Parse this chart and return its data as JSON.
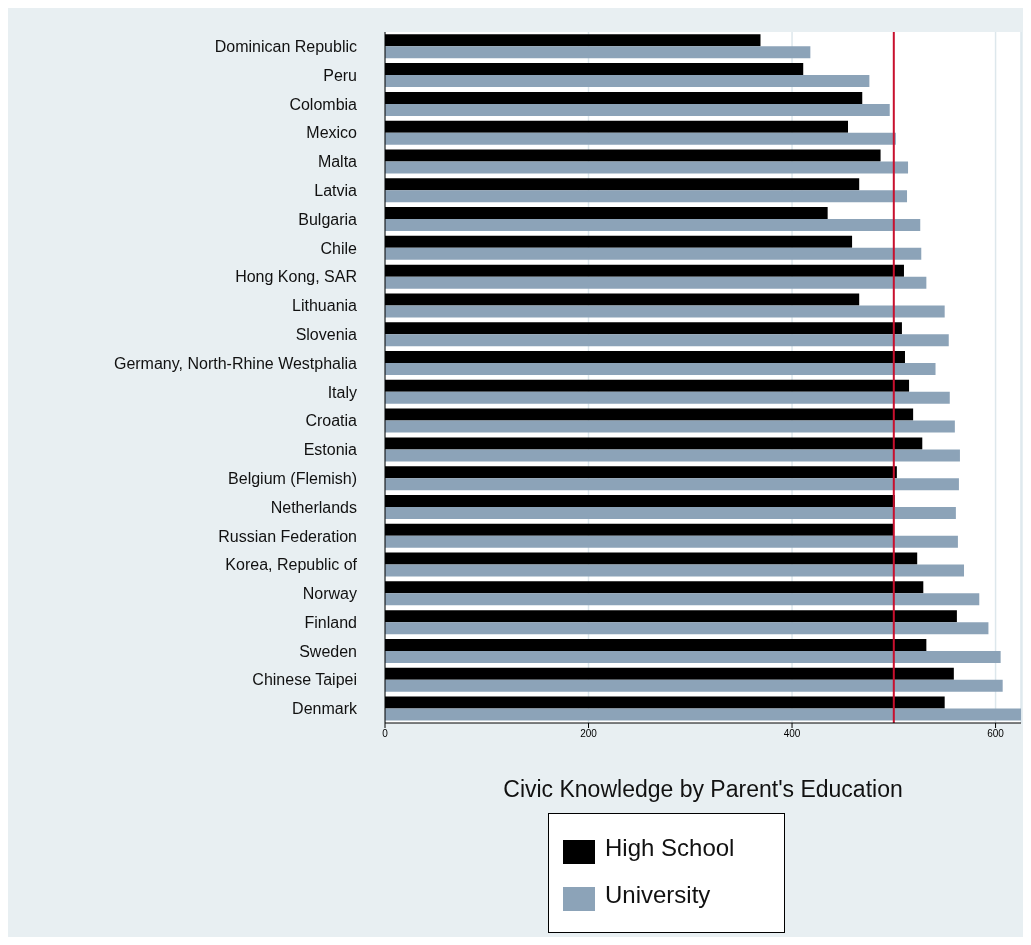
{
  "chart_data": {
    "type": "bar",
    "orientation": "horizontal",
    "title": "Civic Knowledge by Parent's Education",
    "categories": [
      "Dominican Republic",
      "Peru",
      "Colombia",
      "Mexico",
      "Malta",
      "Latvia",
      "Bulgaria",
      "Chile",
      "Hong Kong, SAR",
      "Lithuania",
      "Slovenia",
      "Germany, North-Rhine Westphalia",
      "Italy",
      "Croatia",
      "Estonia",
      "Belgium (Flemish)",
      "Netherlands",
      "Russian Federation",
      "Korea, Republic of",
      "Norway",
      "Finland",
      "Sweden",
      "Chinese Taipei",
      "Denmark"
    ],
    "series": [
      {
        "name": "High School",
        "color": "#000000",
        "values": [
          369,
          411,
          469,
          455,
          487,
          466,
          435,
          459,
          510,
          466,
          508,
          511,
          515,
          519,
          528,
          503,
          501,
          500,
          523,
          529,
          562,
          532,
          559,
          550
        ]
      },
      {
        "name": "University",
        "color": "#8ca3b8",
        "values": [
          418,
          476,
          496,
          502,
          514,
          513,
          526,
          527,
          532,
          550,
          554,
          541,
          555,
          560,
          565,
          564,
          561,
          563,
          569,
          584,
          593,
          605,
          607,
          625
        ]
      }
    ],
    "xlim": [
      0,
      625
    ],
    "xticks": [
      0,
      200,
      400,
      600
    ],
    "grid": "x",
    "legend": "bottom",
    "ref_lines": [
      {
        "axis": "x",
        "value": 500,
        "color": "#c8102e"
      }
    ]
  }
}
